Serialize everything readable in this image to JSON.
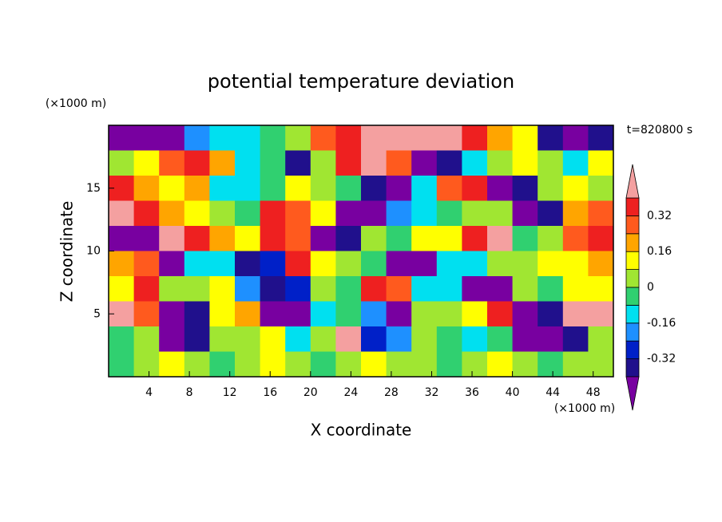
{
  "chart_data": {
    "type": "contour",
    "title": "potential temperature deviation",
    "xlabel": "X coordinate",
    "ylabel": "Z coordinate",
    "x_unit": "(×1000 m)",
    "y_unit": "(×1000 m)",
    "time_label": "t=820800 s",
    "xlim": [
      0,
      50
    ],
    "ylim": [
      0,
      20
    ],
    "xticks": [
      4,
      8,
      12,
      16,
      20,
      24,
      28,
      32,
      36,
      40,
      44,
      48
    ],
    "yticks": [
      5,
      10,
      15
    ],
    "x": [
      1.25,
      3.75,
      6.25,
      8.75,
      11.25,
      13.75,
      16.25,
      18.75,
      21.25,
      23.75,
      26.25,
      28.75,
      31.25,
      33.75,
      36.25,
      38.75,
      41.25,
      43.75,
      46.25,
      48.75
    ],
    "y": [
      19,
      17,
      15,
      13,
      11,
      9,
      7,
      5,
      3,
      1
    ],
    "values": [
      [
        -0.45,
        -0.45,
        -0.45,
        -0.2,
        -0.12,
        -0.12,
        -0.04,
        0.04,
        0.28,
        0.36,
        0.45,
        0.45,
        0.45,
        0.45,
        0.36,
        0.2,
        0.12,
        -0.36,
        -0.45,
        -0.36
      ],
      [
        0.04,
        0.12,
        0.28,
        0.36,
        0.2,
        -0.12,
        -0.04,
        -0.36,
        0.04,
        0.36,
        0.45,
        0.28,
        -0.45,
        -0.36,
        -0.12,
        0.04,
        0.12,
        0.04,
        -0.12,
        0.12
      ],
      [
        0.36,
        0.2,
        0.12,
        0.2,
        -0.12,
        -0.12,
        -0.04,
        0.12,
        0.04,
        -0.04,
        -0.36,
        -0.45,
        -0.12,
        0.28,
        0.36,
        -0.45,
        -0.36,
        0.04,
        0.12,
        0.04
      ],
      [
        0.45,
        0.36,
        0.2,
        0.12,
        0.04,
        -0.04,
        0.36,
        0.28,
        0.12,
        -0.45,
        -0.45,
        -0.2,
        -0.12,
        -0.04,
        0.04,
        0.04,
        -0.45,
        -0.36,
        0.2,
        0.28
      ],
      [
        -0.45,
        -0.45,
        0.45,
        0.36,
        0.2,
        0.12,
        0.36,
        0.28,
        -0.45,
        -0.36,
        0.04,
        -0.04,
        0.12,
        0.12,
        0.36,
        0.45,
        -0.04,
        0.04,
        0.28,
        0.36
      ],
      [
        0.2,
        0.28,
        -0.45,
        -0.12,
        -0.12,
        -0.36,
        -0.28,
        0.36,
        0.12,
        0.04,
        -0.04,
        -0.45,
        -0.45,
        -0.12,
        -0.12,
        0.04,
        0.04,
        0.12,
        0.12,
        0.2
      ],
      [
        0.12,
        0.36,
        0.04,
        0.04,
        0.12,
        -0.2,
        -0.36,
        -0.28,
        0.04,
        -0.04,
        0.36,
        0.28,
        -0.12,
        -0.12,
        -0.45,
        -0.45,
        0.04,
        -0.04,
        0.12,
        0.12
      ],
      [
        0.45,
        0.28,
        -0.45,
        -0.36,
        0.12,
        0.2,
        -0.45,
        -0.45,
        -0.12,
        -0.04,
        -0.2,
        -0.45,
        0.04,
        0.04,
        0.12,
        0.36,
        -0.45,
        -0.36,
        0.45,
        0.45
      ],
      [
        -0.04,
        0.04,
        -0.45,
        -0.36,
        0.04,
        0.04,
        0.12,
        -0.12,
        0.04,
        0.45,
        -0.28,
        -0.2,
        0.04,
        -0.04,
        -0.12,
        -0.04,
        -0.45,
        -0.45,
        -0.36,
        0.04
      ],
      [
        -0.04,
        0.04,
        0.12,
        0.04,
        -0.04,
        0.04,
        0.12,
        0.04,
        -0.04,
        0.04,
        0.12,
        0.04,
        0.04,
        -0.04,
        0.04,
        0.12,
        0.04,
        -0.04,
        0.04,
        0.04
      ]
    ],
    "levels": [
      -0.4,
      -0.32,
      -0.24,
      -0.16,
      -0.08,
      0,
      0.08,
      0.16,
      0.24,
      0.32,
      0.4
    ],
    "colors": [
      "#7800a0",
      "#20108c",
      "#0020c8",
      "#1e90ff",
      "#00e0f0",
      "#30d070",
      "#a0e632",
      "#ffff00",
      "#ffa500",
      "#ff5a1e",
      "#ee2020",
      "#f4a0a0"
    ],
    "cbar_ticks": [
      -0.32,
      -0.16,
      0,
      0.16,
      0.32
    ]
  }
}
